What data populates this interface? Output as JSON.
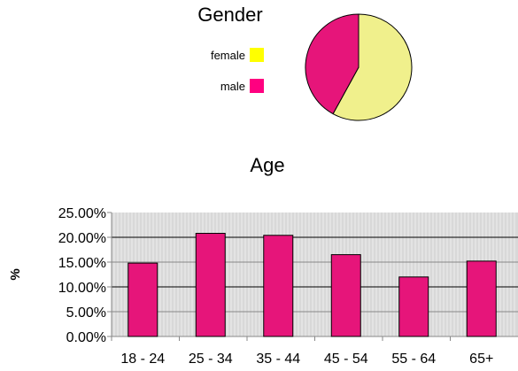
{
  "chart_data": [
    {
      "type": "pie",
      "title": "Gender",
      "legend_position": "left",
      "slices": [
        {
          "label": "female",
          "value": 58,
          "color": "#f0f08c",
          "legend_color": "#ffff00"
        },
        {
          "label": "male",
          "value": 42,
          "color": "#e6157a",
          "legend_color": "#ff0080"
        }
      ]
    },
    {
      "type": "bar",
      "title": "Age",
      "xlabel": "",
      "ylabel": "%",
      "categories": [
        "18 - 24",
        "25 - 34",
        "35 - 44",
        "45 - 54",
        "55 - 64",
        "65+"
      ],
      "values": [
        14.8,
        20.8,
        20.4,
        16.5,
        12.0,
        15.2
      ],
      "ylim": [
        0,
        25
      ],
      "yticks": [
        {
          "value": 0,
          "label": "0.00%"
        },
        {
          "value": 5,
          "label": "5.00%"
        },
        {
          "value": 10,
          "label": "10.00%"
        },
        {
          "value": 15,
          "label": "15.00%"
        },
        {
          "value": 20,
          "label": "20.00%"
        },
        {
          "value": 25,
          "label": "25.00%"
        }
      ],
      "grid": true,
      "bar_color": "#e6157a",
      "plot_bg": "#d8d8d8"
    }
  ]
}
